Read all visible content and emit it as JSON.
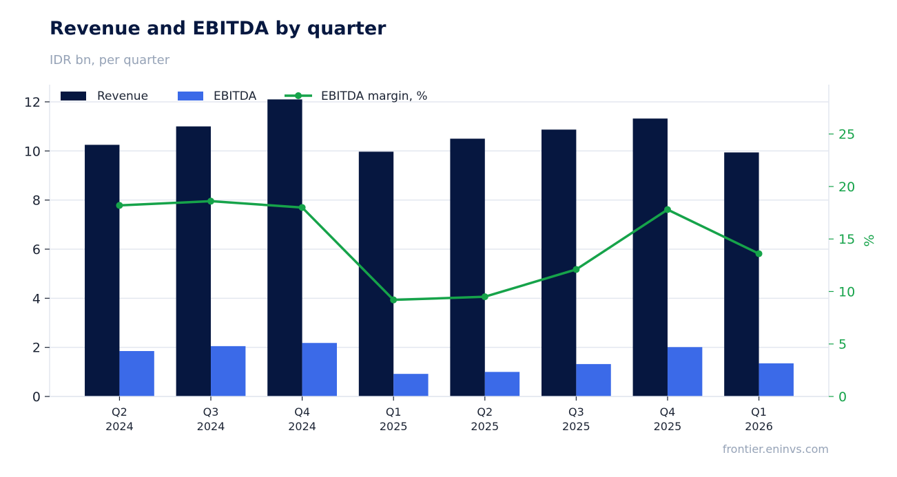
{
  "title": "Revenue and EBITDA by quarter",
  "subtitle": "IDR bn, per quarter",
  "source": "frontier.eninvs.com",
  "colors": {
    "revenue": "#061740",
    "ebitda": "#3b6ae8",
    "margin": "#16a34a"
  },
  "chart_data": {
    "type": "bar",
    "categories": [
      [
        "Q2",
        "2024"
      ],
      [
        "Q3",
        "2024"
      ],
      [
        "Q4",
        "2024"
      ],
      [
        "Q1",
        "2025"
      ],
      [
        "Q2",
        "2025"
      ],
      [
        "Q3",
        "2025"
      ],
      [
        "Q4",
        "2025"
      ],
      [
        "Q1",
        "2026"
      ]
    ],
    "series": [
      {
        "name": "Revenue",
        "type": "bar",
        "axis": "left",
        "values": [
          10.25,
          11.0,
          12.1,
          9.97,
          10.5,
          10.87,
          11.32,
          9.94
        ]
      },
      {
        "name": "EBITDA",
        "type": "bar",
        "axis": "left",
        "values": [
          1.85,
          2.05,
          2.18,
          0.92,
          1.0,
          1.32,
          2.01,
          1.35
        ]
      },
      {
        "name": "EBITDA margin, %",
        "type": "line",
        "axis": "right",
        "values": [
          18.2,
          18.6,
          18.0,
          9.2,
          9.5,
          12.1,
          17.8,
          13.6
        ]
      }
    ],
    "left_axis": {
      "ylim": [
        0,
        12.7
      ],
      "ticks": [
        0,
        2,
        4,
        6,
        8,
        10,
        12
      ]
    },
    "right_axis": {
      "label": "%",
      "ylim": [
        0,
        29.7
      ],
      "ticks": [
        0,
        5,
        10,
        15,
        20,
        25
      ]
    },
    "legend_position": "top-left",
    "grid": true
  }
}
